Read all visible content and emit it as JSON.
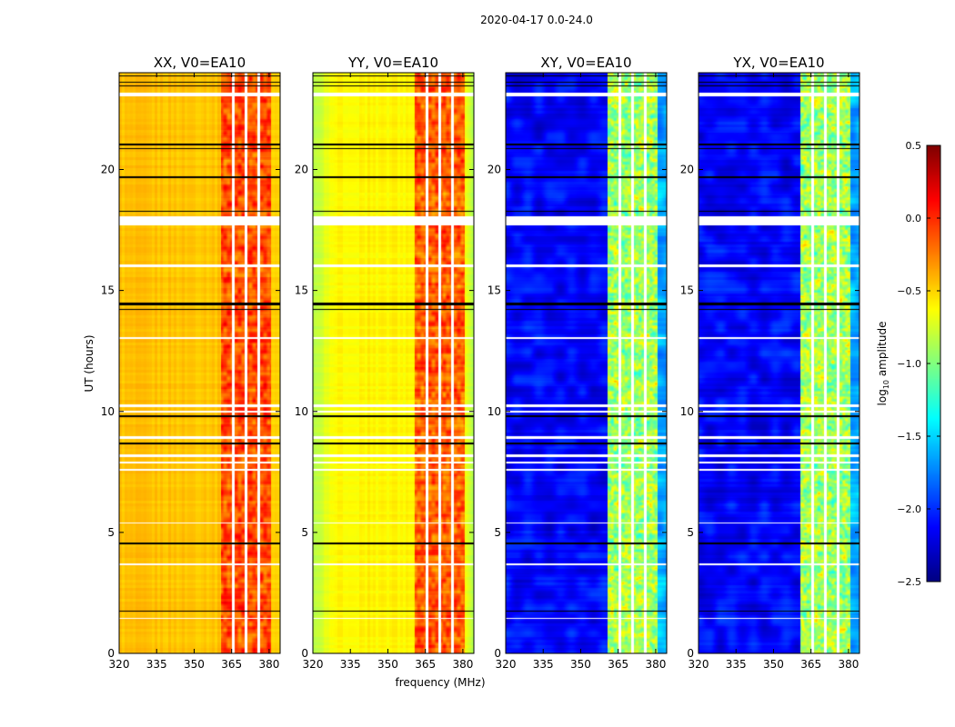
{
  "chart_data": {
    "type": "heatmap",
    "title": "2020-04-17 0.0-24.0",
    "xlabel": "frequency (MHz)",
    "ylabel": "UT (hours)",
    "xlim": [
      320,
      384.4
    ],
    "ylim": [
      0,
      24
    ],
    "xticks": [
      320,
      335,
      350,
      365,
      380
    ],
    "yticks": [
      0,
      5,
      10,
      15,
      20
    ],
    "panels": [
      {
        "title": "XX, V0=EA10",
        "background_level": -0.45,
        "band_level": -0.1
      },
      {
        "title": "YY, V0=EA10",
        "background_level": -0.6,
        "band_level": -0.15
      },
      {
        "title": "XY, V0=EA10",
        "background_level": -2.3,
        "band_level": -0.9
      },
      {
        "title": "YX, V0=EA10",
        "background_level": -2.3,
        "band_level": -0.9
      }
    ],
    "band_mhz": [
      360.7,
      380.4
    ],
    "band_gaps_mhz": [
      365.5,
      370.6,
      375.6
    ],
    "flagged_white_hours": [
      [
        23.05,
        23.2
      ],
      [
        17.7,
        18.1
      ],
      [
        16.0,
        16.1
      ],
      [
        13.0,
        13.1
      ],
      [
        10.2,
        10.3
      ],
      [
        9.97,
        10.03
      ],
      [
        8.9,
        9.0
      ],
      [
        8.15,
        8.25
      ],
      [
        7.85,
        7.95
      ],
      [
        7.55,
        7.65
      ],
      [
        5.38,
        5.42
      ],
      [
        3.68,
        3.72
      ],
      [
        1.43,
        1.48
      ]
    ],
    "flagged_black_hours": [
      [
        23.85,
        23.9
      ],
      [
        23.6,
        23.65
      ],
      [
        23.45,
        23.5
      ],
      [
        21.0,
        21.1
      ],
      [
        20.85,
        20.9
      ],
      [
        19.68,
        19.72
      ],
      [
        18.28,
        18.32
      ],
      [
        14.4,
        14.5
      ],
      [
        14.2,
        14.25
      ],
      [
        9.78,
        9.85
      ],
      [
        8.65,
        8.75
      ],
      [
        4.52,
        4.6
      ],
      [
        1.73,
        1.8
      ]
    ],
    "colorbar": {
      "label_main": "log",
      "label_sub": "10",
      "label_rest": " amplitude",
      "range": [
        -2.5,
        0.5
      ],
      "colormap": "jet",
      "ticks": [
        0.5,
        0.0,
        -0.5,
        -1.0,
        -1.5,
        -2.0,
        -2.5
      ],
      "tick_labels": [
        "0.5",
        "0.0",
        "−0.5",
        "−1.0",
        "−1.5",
        "−2.0",
        "−2.5"
      ]
    }
  }
}
